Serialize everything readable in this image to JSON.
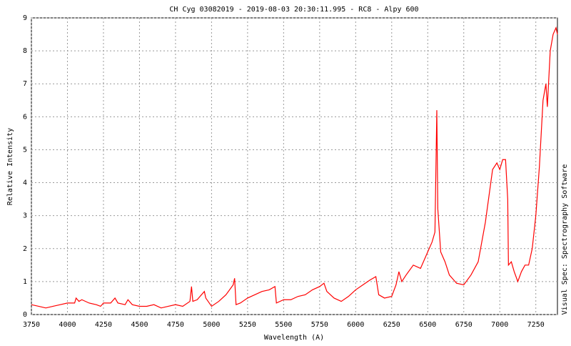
{
  "chart_data": {
    "type": "line",
    "title": "CH Cyg 03082019 - 2019-08-03 20:30:11.995 - RC8 - Alpy 600",
    "x_label": "Wavelength (A)",
    "y_label": "Relative Intensity",
    "side_label": "Visual Spec: Spectrography Software",
    "x": [
      3750,
      3800,
      3850,
      3900,
      3950,
      4000,
      4050,
      4060,
      4080,
      4100,
      4150,
      4200,
      4230,
      4250,
      4300,
      4330,
      4350,
      4400,
      4420,
      4450,
      4500,
      4550,
      4600,
      4650,
      4700,
      4750,
      4800,
      4850,
      4861,
      4870,
      4900,
      4950,
      4960,
      5000,
      5050,
      5100,
      5150,
      5160,
      5170,
      5200,
      5250,
      5300,
      5350,
      5400,
      5440,
      5450,
      5500,
      5550,
      5600,
      5650,
      5700,
      5750,
      5780,
      5800,
      5850,
      5900,
      5950,
      6000,
      6050,
      6100,
      6140,
      6160,
      6200,
      6250,
      6280,
      6300,
      6320,
      6350,
      6400,
      6450,
      6500,
      6530,
      6550,
      6563,
      6570,
      6590,
      6620,
      6650,
      6700,
      6750,
      6800,
      6850,
      6900,
      6950,
      6980,
      7000,
      7020,
      7040,
      7055,
      7060,
      7080,
      7100,
      7125,
      7150,
      7175,
      7200,
      7225,
      7250,
      7275,
      7300,
      7320,
      7330,
      7350,
      7370,
      7390,
      7400
    ],
    "series": [
      {
        "name": "CH Cyg",
        "color": "#ff0000",
        "values": [
          0.3,
          0.25,
          0.2,
          0.25,
          0.3,
          0.35,
          0.35,
          0.5,
          0.4,
          0.45,
          0.35,
          0.3,
          0.25,
          0.35,
          0.35,
          0.5,
          0.35,
          0.3,
          0.45,
          0.3,
          0.25,
          0.25,
          0.3,
          0.2,
          0.25,
          0.3,
          0.25,
          0.4,
          0.85,
          0.4,
          0.45,
          0.7,
          0.5,
          0.25,
          0.4,
          0.6,
          0.9,
          1.1,
          0.3,
          0.35,
          0.5,
          0.6,
          0.7,
          0.75,
          0.85,
          0.35,
          0.45,
          0.45,
          0.55,
          0.6,
          0.75,
          0.85,
          0.95,
          0.7,
          0.5,
          0.4,
          0.55,
          0.75,
          0.9,
          1.05,
          1.15,
          0.6,
          0.5,
          0.55,
          0.9,
          1.3,
          1.0,
          1.2,
          1.5,
          1.4,
          1.9,
          2.2,
          2.5,
          6.2,
          3.2,
          1.9,
          1.6,
          1.2,
          0.95,
          0.9,
          1.2,
          1.6,
          2.8,
          4.4,
          4.6,
          4.4,
          4.7,
          4.7,
          3.5,
          1.5,
          1.6,
          1.3,
          1.0,
          1.3,
          1.5,
          1.5,
          2.0,
          3.0,
          4.5,
          6.5,
          7.0,
          6.3,
          8.0,
          8.5,
          8.7,
          8.5
        ]
      }
    ],
    "xlim": [
      3750,
      7400
    ],
    "ylim": [
      0,
      9
    ],
    "xticks": [
      3750,
      4000,
      4250,
      4500,
      4750,
      5000,
      5250,
      5500,
      5750,
      6000,
      6250,
      6500,
      6750,
      7000,
      7250
    ],
    "yticks": [
      0,
      1,
      2,
      3,
      4,
      5,
      6,
      7,
      8,
      9
    ],
    "grid": true
  }
}
